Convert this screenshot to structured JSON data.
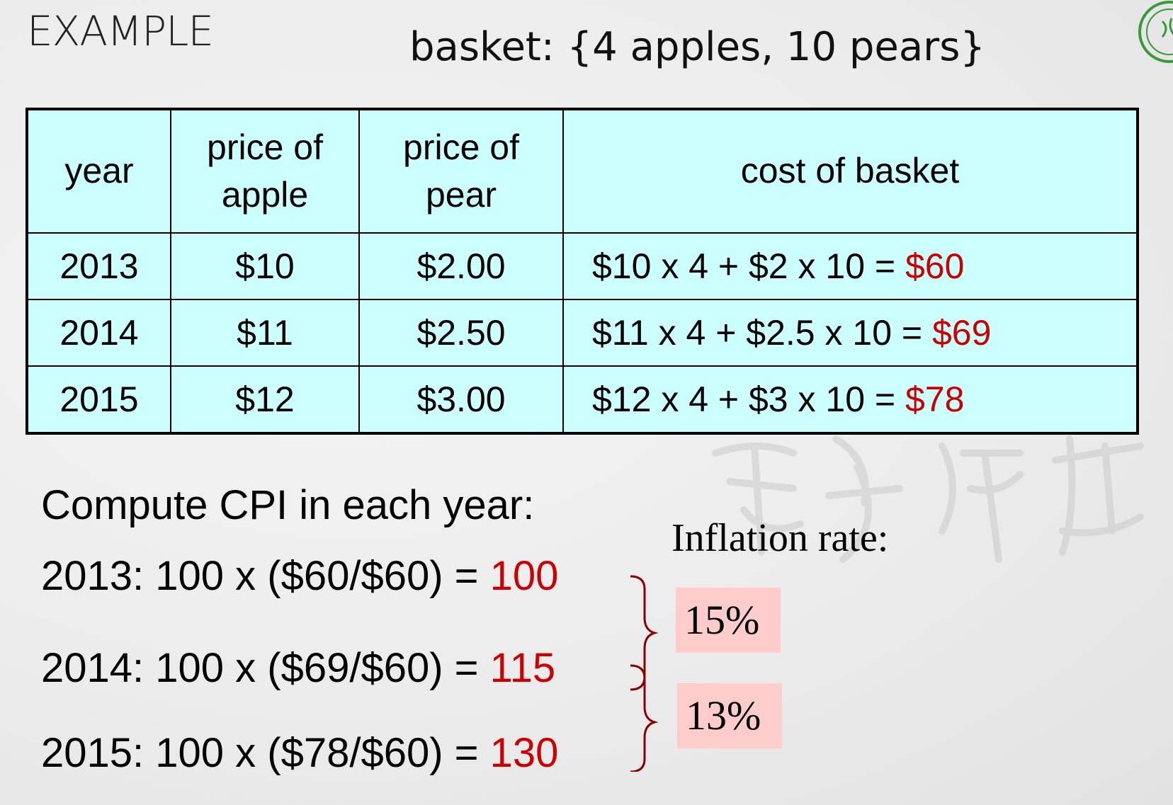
{
  "heading": "EXAMPLE",
  "basket": "basket: {4 apples, 10 pears}",
  "table": {
    "headers": {
      "year": "year",
      "apple": [
        "price of",
        "apple"
      ],
      "pear": [
        "price of",
        "pear"
      ],
      "cost": "cost of basket"
    },
    "rows": [
      {
        "year": "2013",
        "apple": "$10",
        "pear": "$2.00",
        "formula": "$10 x 4 + $2 x 10 = ",
        "total": "$60"
      },
      {
        "year": "2014",
        "apple": "$11",
        "pear": "$2.50",
        "formula": "$11 x 4 + $2.5 x 10 = ",
        "total": "$69"
      },
      {
        "year": "2015",
        "apple": "$12",
        "pear": "$3.00",
        "formula": "$12 x 4 + $3 x 10 = ",
        "total": "$78"
      }
    ]
  },
  "compute": {
    "title": "Compute CPI in each year:",
    "lines": [
      {
        "expr": "2013:  100  x  ($60/$60)  =  ",
        "value": "100"
      },
      {
        "expr": "2014:  100  x  ($69/$60)  =  ",
        "value": "115"
      },
      {
        "expr": "2015:  100  x  ($78/$60)  =  ",
        "value": "130"
      }
    ]
  },
  "inflation": {
    "title": "Inflation rate:",
    "rates": [
      "15%",
      "13%"
    ]
  },
  "colors": {
    "highlight_text": "#cc0000",
    "table_fill": "#ccffff",
    "rate_box_fill": "#ffcccc",
    "brace": "#8b0000"
  },
  "icons": {
    "seal": "university-seal-icon",
    "watermark": "calligraphy-watermark"
  }
}
